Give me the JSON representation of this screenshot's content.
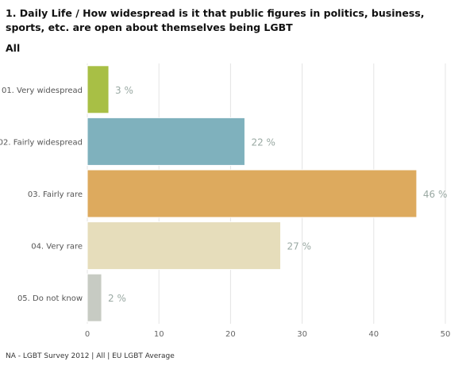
{
  "title": "1. Daily Life / How widespread is it that public figures in politics, business, sports, etc. are open about themselves being LGBT",
  "subtitle": "All",
  "footer": "NA - LGBT Survey 2012 | All | EU LGBT Average",
  "chart_data": {
    "type": "bar",
    "orientation": "horizontal",
    "categories": [
      "01. Very widespread",
      "02. Fairly widespread",
      "03. Fairly rare",
      "04. Very rare",
      "05. Do not know"
    ],
    "values": [
      3,
      22,
      46,
      27,
      2
    ],
    "value_labels": [
      "3 %",
      "22 %",
      "46 %",
      "27 %",
      "2 %"
    ],
    "colors": [
      "#a8bf45",
      "#7fb1bd",
      "#ddaa5e",
      "#e6ddbb",
      "#c7cbc3"
    ],
    "xlim": [
      0,
      50
    ],
    "xticks": [
      0,
      10,
      20,
      30,
      40,
      50
    ],
    "grid": true,
    "xlabel": "",
    "ylabel": ""
  }
}
